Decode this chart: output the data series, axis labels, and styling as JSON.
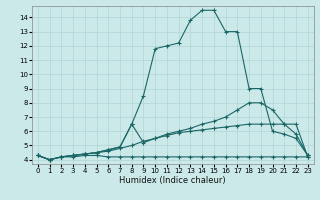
{
  "bg_color": "#cce9e9",
  "grid_color": "#b0d4d4",
  "line_color": "#1a6666",
  "xlabel": "Humidex (Indice chaleur)",
  "xlim": [
    -0.5,
    23.5
  ],
  "ylim": [
    3.7,
    14.8
  ],
  "xticks": [
    0,
    1,
    2,
    3,
    4,
    5,
    6,
    7,
    8,
    9,
    10,
    11,
    12,
    13,
    14,
    15,
    16,
    17,
    18,
    19,
    20,
    21,
    22,
    23
  ],
  "yticks": [
    4,
    5,
    6,
    7,
    8,
    9,
    10,
    11,
    12,
    13,
    14
  ],
  "lines": [
    {
      "x": [
        0,
        1,
        2,
        3,
        4,
        5,
        6,
        7,
        8,
        9,
        10,
        11,
        12,
        13,
        14,
        15,
        16,
        17,
        18,
        19,
        20,
        21,
        22,
        23
      ],
      "y": [
        4.3,
        4.0,
        4.2,
        4.2,
        4.3,
        4.3,
        4.2,
        4.2,
        4.2,
        4.2,
        4.2,
        4.2,
        4.2,
        4.2,
        4.2,
        4.2,
        4.2,
        4.2,
        4.2,
        4.2,
        4.2,
        4.2,
        4.2,
        4.2
      ]
    },
    {
      "x": [
        0,
        1,
        2,
        3,
        4,
        5,
        6,
        7,
        8,
        9,
        10,
        11,
        12,
        13,
        14,
        15,
        16,
        17,
        18,
        19,
        20,
        21,
        22,
        23
      ],
      "y": [
        4.3,
        4.0,
        4.2,
        4.3,
        4.4,
        4.5,
        4.6,
        4.8,
        5.0,
        5.3,
        5.5,
        5.7,
        5.9,
        6.0,
        6.1,
        6.2,
        6.3,
        6.4,
        6.5,
        6.5,
        6.5,
        6.5,
        6.5,
        4.2
      ]
    },
    {
      "x": [
        0,
        1,
        2,
        3,
        4,
        5,
        6,
        7,
        8,
        9,
        10,
        11,
        12,
        13,
        14,
        15,
        16,
        17,
        18,
        19,
        20,
        21,
        22,
        23
      ],
      "y": [
        4.3,
        4.0,
        4.2,
        4.3,
        4.4,
        4.5,
        4.7,
        4.9,
        6.5,
        5.2,
        5.5,
        5.8,
        6.0,
        6.2,
        6.5,
        6.7,
        7.0,
        7.5,
        8.0,
        8.0,
        7.5,
        6.5,
        5.8,
        4.3
      ]
    },
    {
      "x": [
        0,
        1,
        2,
        3,
        4,
        5,
        6,
        7,
        8,
        9,
        10,
        11,
        12,
        13,
        14,
        15,
        16,
        17,
        18,
        19,
        20,
        21,
        22,
        23
      ],
      "y": [
        4.3,
        4.0,
        4.2,
        4.3,
        4.4,
        4.5,
        4.7,
        4.9,
        6.5,
        8.5,
        11.8,
        12.0,
        12.2,
        13.8,
        14.5,
        14.5,
        13.0,
        13.0,
        9.0,
        9.0,
        6.0,
        5.8,
        5.5,
        4.3
      ]
    }
  ]
}
